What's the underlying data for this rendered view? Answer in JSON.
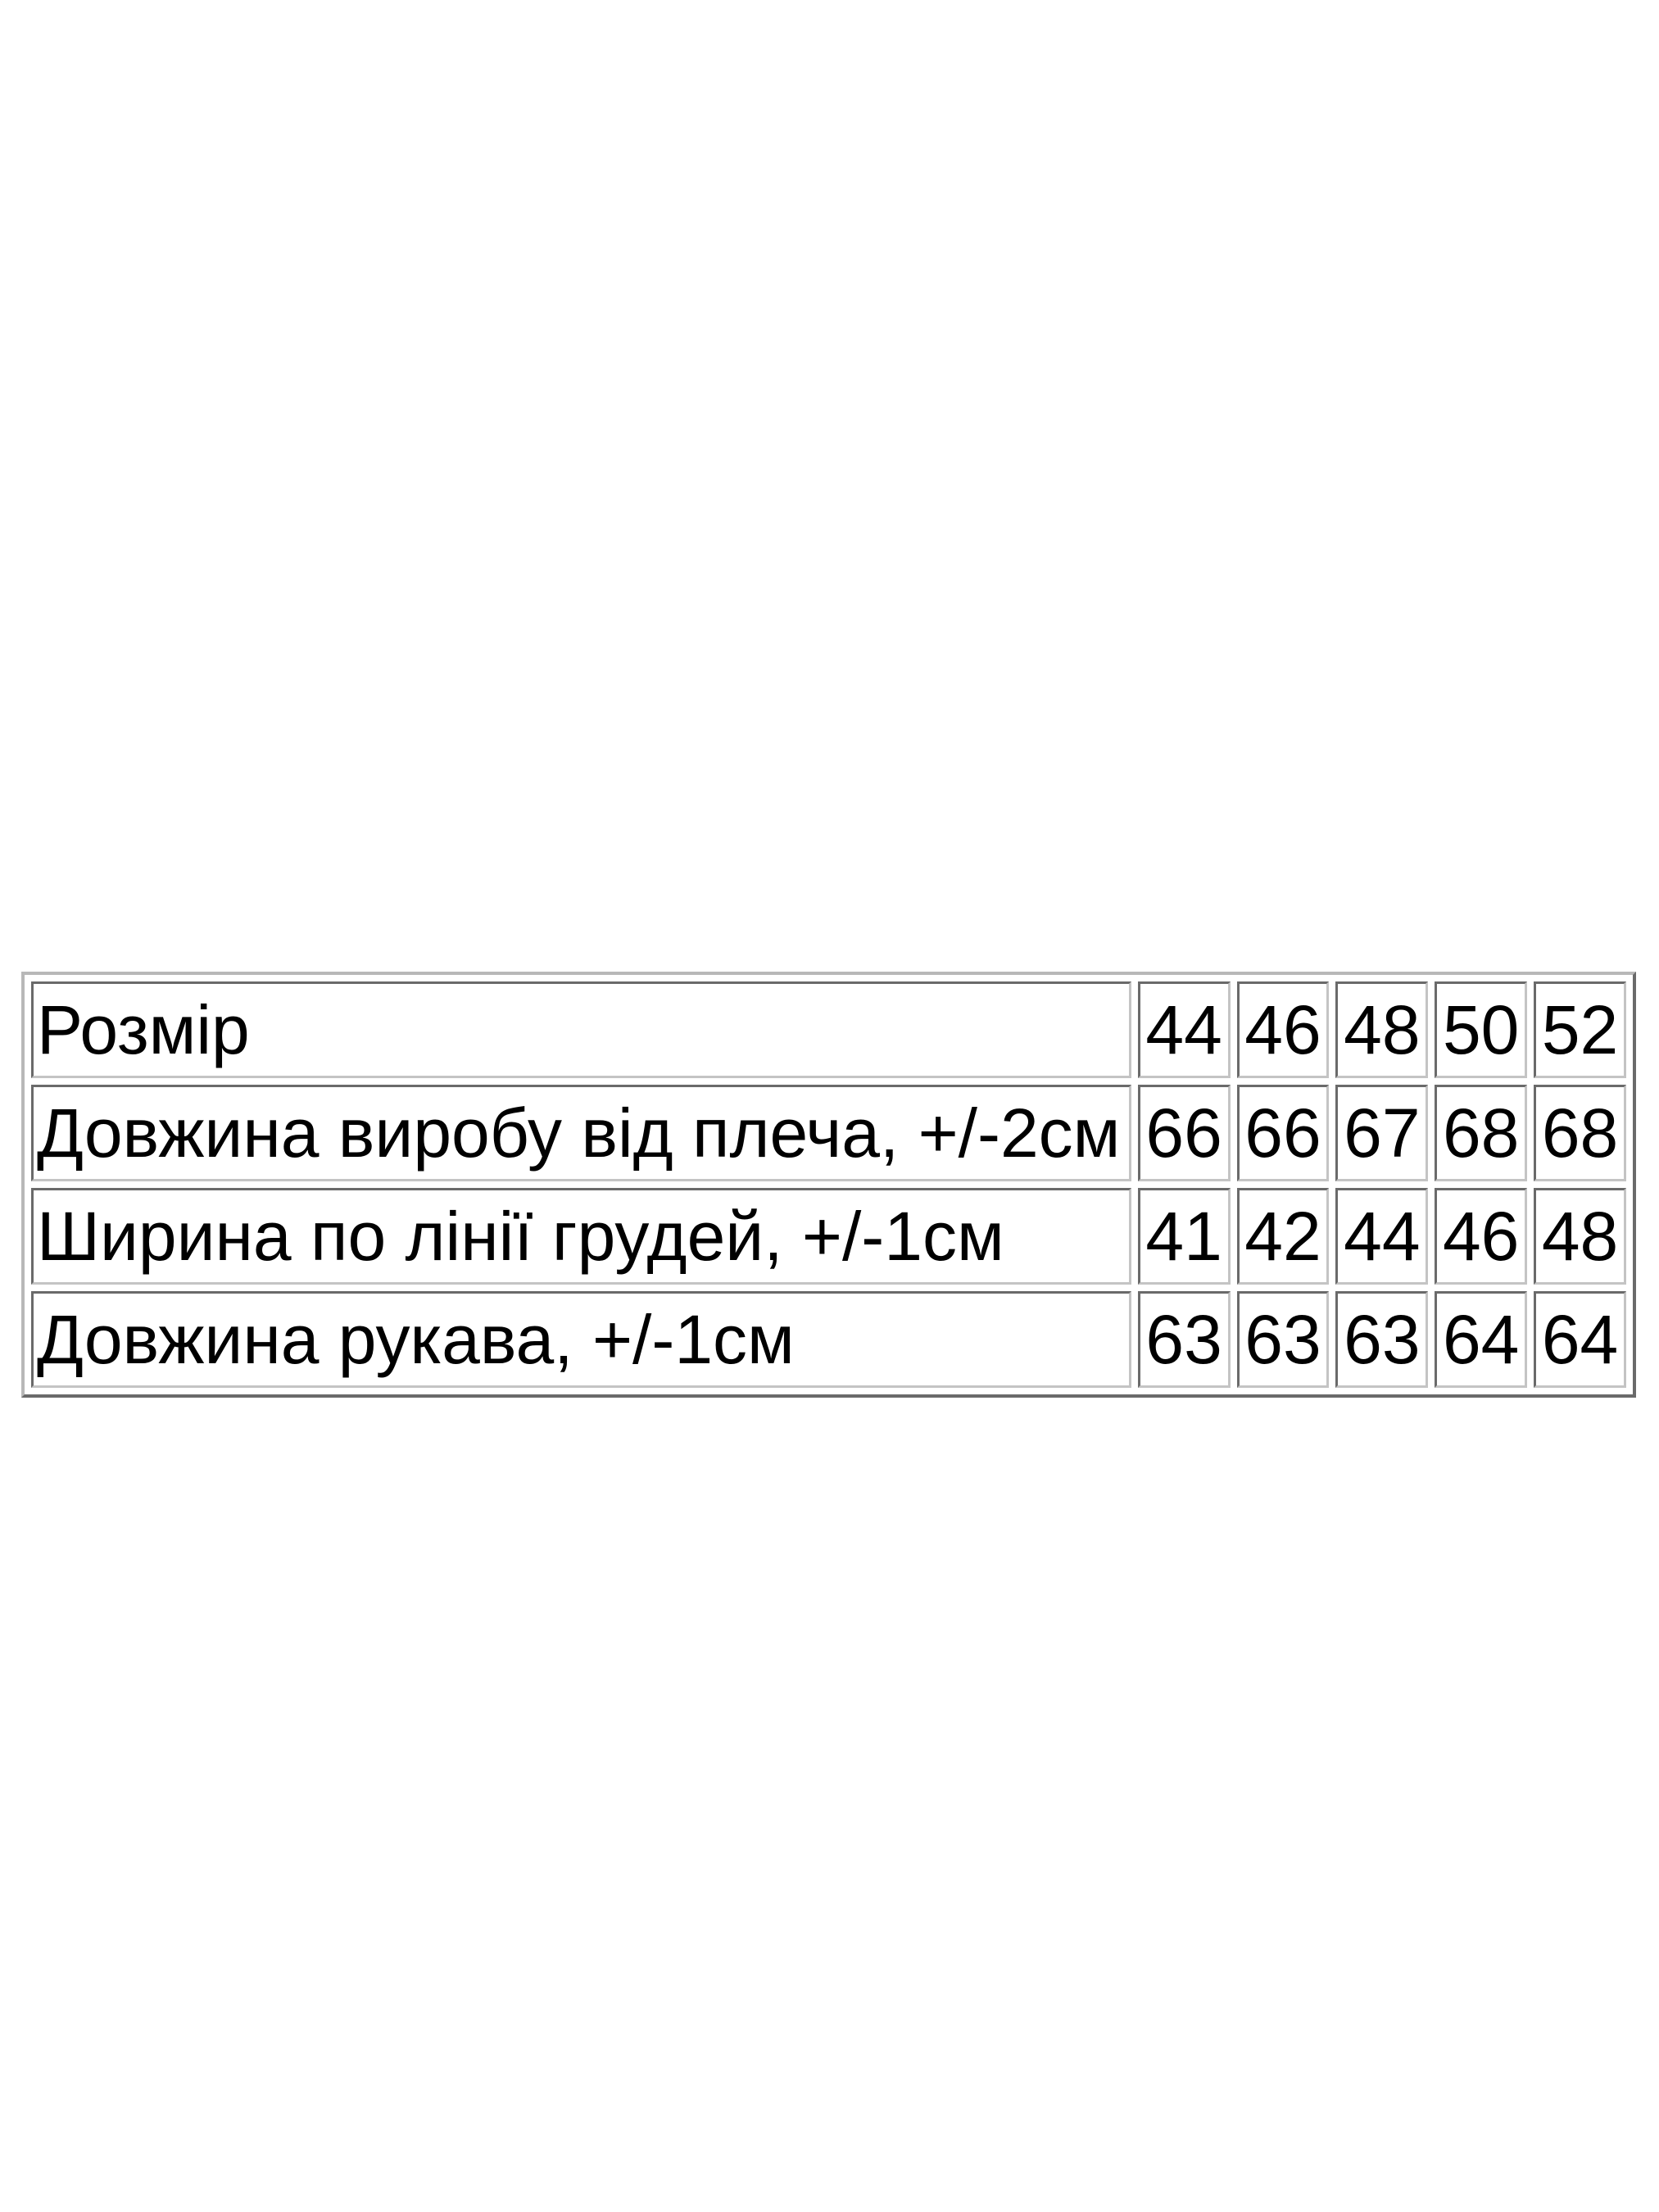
{
  "table": {
    "rows": [
      {
        "label": "Розмір",
        "values": [
          "44",
          "46",
          "48",
          "50",
          "52"
        ]
      },
      {
        "label": "Довжина виробу від плеча, +/-2см",
        "values": [
          "66",
          "66",
          "67",
          "68",
          "68"
        ]
      },
      {
        "label": "Ширина по лінії грудей, +/-1см",
        "values": [
          "41",
          "42",
          "44",
          "46",
          "48"
        ]
      },
      {
        "label": "Довжина рукава, +/-1см",
        "values": [
          "63",
          "63",
          "63",
          "64",
          "64"
        ]
      }
    ]
  }
}
